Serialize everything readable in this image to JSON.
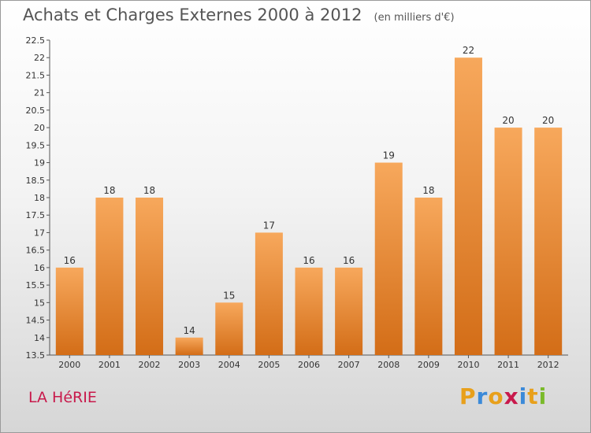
{
  "header": {
    "title": "Achats et Charges Externes 2000 à 2012",
    "unit": "(en milliers d'€)"
  },
  "footer": {
    "location": "LA HéRIE",
    "brand": [
      "P",
      "r",
      "o",
      "x",
      "i",
      "t",
      "i"
    ],
    "brand_colors": [
      "#e8a01b",
      "#3b8ad9",
      "#e8a01b",
      "#c8194b",
      "#3b8ad9",
      "#e8a01b",
      "#7aba2a"
    ]
  },
  "chart_data": {
    "type": "bar",
    "categories": [
      "2000",
      "2001",
      "2002",
      "2003",
      "2004",
      "2005",
      "2006",
      "2007",
      "2008",
      "2009",
      "2010",
      "2011",
      "2012"
    ],
    "values": [
      16,
      18,
      18,
      14,
      15,
      17,
      16,
      16,
      19,
      18,
      22,
      20,
      20
    ],
    "data_labels": [
      "16",
      "18",
      "18",
      "14",
      "15",
      "17",
      "16",
      "16",
      "19",
      "18",
      "22",
      "20",
      "20"
    ],
    "ylim": [
      13.5,
      22.5
    ],
    "yticks": [
      "13.5",
      "14",
      "14.5",
      "15",
      "15.5",
      "16",
      "16.5",
      "17",
      "17.5",
      "18",
      "18.5",
      "19",
      "19.5",
      "20",
      "20.5",
      "21",
      "21.5",
      "22",
      "22.5"
    ],
    "bar_color": "#f0923a",
    "grid": false,
    "title": "Achats et Charges Externes 2000 à 2012",
    "xlabel": "",
    "ylabel": ""
  }
}
